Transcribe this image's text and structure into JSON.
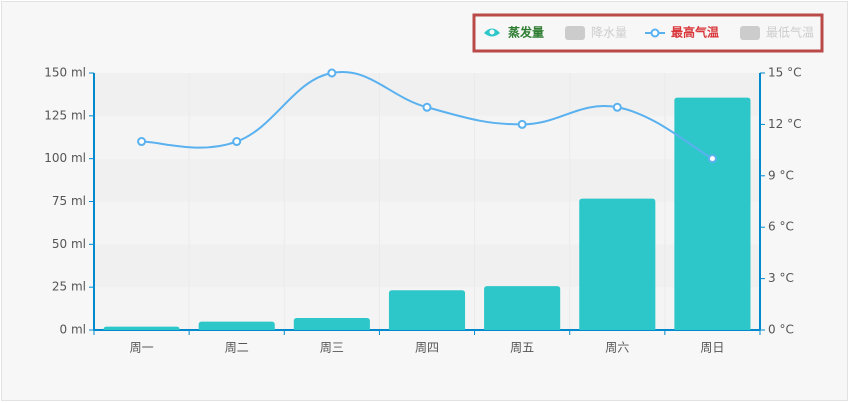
{
  "chart_data": {
    "type": "bar",
    "categories": [
      "周一",
      "周二",
      "周三",
      "周四",
      "周五",
      "周六",
      "周日"
    ],
    "series": [
      {
        "name": "蒸发量",
        "type": "bar",
        "color": "#2ec7c9",
        "values": [
          2.0,
          4.9,
          7.0,
          23.2,
          25.6,
          76.7,
          135.6
        ]
      },
      {
        "name": "最高气温",
        "type": "line",
        "axis": "y2",
        "color": "#5ab1ef",
        "values": [
          11,
          11,
          15,
          13,
          12,
          13,
          10
        ]
      }
    ],
    "legend": [
      {
        "name": "蒸发量",
        "selected": true,
        "text_color": "#2e7d32",
        "icon": "eye"
      },
      {
        "name": "降水量",
        "selected": false,
        "text_color": "#cccccc",
        "icon": "rect"
      },
      {
        "name": "最高气温",
        "selected": true,
        "text_color": "#d9373b",
        "icon": "line"
      },
      {
        "name": "最低气温",
        "selected": false,
        "text_color": "#cccccc",
        "icon": "rect"
      }
    ],
    "ylim": [
      0,
      150
    ],
    "yticks": [
      {
        "value": 0,
        "label": "0 ml"
      },
      {
        "value": 25,
        "label": "25 ml"
      },
      {
        "value": 50,
        "label": "50 ml"
      },
      {
        "value": 75,
        "label": "75 ml"
      },
      {
        "value": 100,
        "label": "100 ml"
      },
      {
        "value": 125,
        "label": "125 ml"
      },
      {
        "value": 150,
        "label": "150 ml"
      }
    ],
    "y2lim": [
      0,
      15
    ],
    "y2ticks": [
      {
        "value": 0,
        "label": "0 °C"
      },
      {
        "value": 3,
        "label": "3 °C"
      },
      {
        "value": 6,
        "label": "6 °C"
      },
      {
        "value": 9,
        "label": "9 °C"
      },
      {
        "value": 12,
        "label": "12 °C"
      },
      {
        "value": 15,
        "label": "15 °C"
      }
    ],
    "grid": true,
    "legend_position": "top-right"
  }
}
